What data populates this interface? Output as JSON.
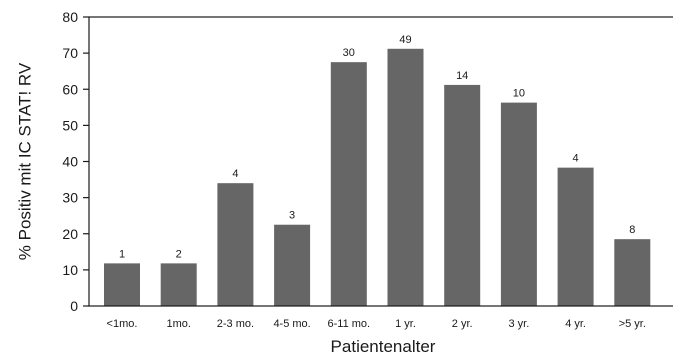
{
  "chart_data": {
    "type": "bar",
    "title": "",
    "xlabel": "Patientenalter",
    "ylabel": "% Positiv mit IC STAT! RV",
    "ylim": [
      0,
      80
    ],
    "yticks": [
      0,
      10,
      20,
      30,
      40,
      50,
      60,
      70,
      80
    ],
    "grid": false,
    "categories": [
      "<1mo.",
      "1mo.",
      "2-3 mo.",
      "4-5 mo.",
      "6-11 mo.",
      "1 yr.",
      "2 yr.",
      "3 yr.",
      "4 yr.",
      ">5 yr."
    ],
    "values": [
      11.8,
      11.8,
      34,
      22.5,
      67.5,
      71.2,
      61.2,
      56.3,
      38.3,
      18.5
    ],
    "data_labels": [
      "1",
      "2",
      "4",
      "3",
      "30",
      "49",
      "14",
      "10",
      "4",
      "8"
    ],
    "bar_color": "#666666"
  }
}
